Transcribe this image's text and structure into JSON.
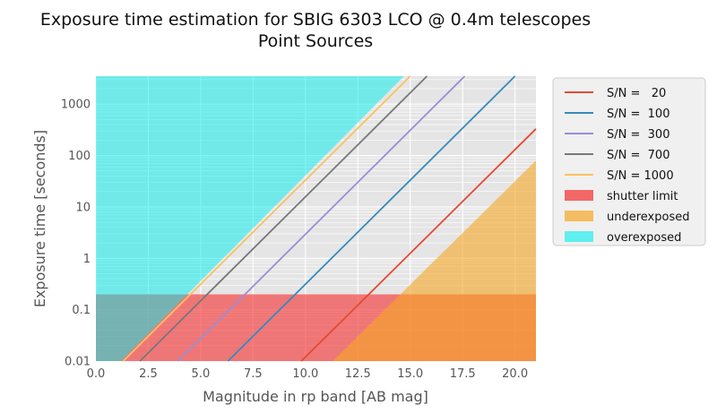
{
  "chart_data": {
    "type": "line",
    "title": "Exposure time estimation for SBIG 6303 LCO @ 0.4m telescopes",
    "subtitle": "Point Sources",
    "xlabel": "Magnitude in rp band [AB mag]",
    "ylabel": "Exposure time [seconds]",
    "xlim": [
      0,
      21
    ],
    "ylim": [
      0.01,
      3500
    ],
    "yscale": "log",
    "grid": true,
    "legend_position": "outside-right",
    "xticks": [
      "0.0",
      "2.5",
      "5.0",
      "7.5",
      "10.0",
      "12.5",
      "15.0",
      "17.5",
      "20.0"
    ],
    "xtick_values": [
      0,
      2.5,
      5,
      7.5,
      10,
      12.5,
      15,
      17.5,
      20
    ],
    "yticks": [
      "0.01",
      "0.1",
      "1",
      "10",
      "100",
      "1000"
    ],
    "ytick_values": [
      0.01,
      0.1,
      1,
      10,
      100,
      1000
    ],
    "series": [
      {
        "name": "S/N =   20",
        "color": "#e24a33",
        "x": [
          9.8,
          21.0
        ],
        "y": [
          0.01,
          330
        ]
      },
      {
        "name": "S/N =  100",
        "color": "#348abd",
        "x": [
          6.3,
          20.0
        ],
        "y": [
          0.01,
          3500
        ]
      },
      {
        "name": "S/N =  300",
        "color": "#988ed5",
        "x": [
          3.9,
          17.6
        ],
        "y": [
          0.01,
          3500
        ]
      },
      {
        "name": "S/N =  700",
        "color": "#777777",
        "x": [
          2.1,
          15.8
        ],
        "y": [
          0.01,
          3500
        ]
      },
      {
        "name": "S/N = 1000",
        "color": "#fbc15e",
        "x": [
          1.3,
          15.0
        ],
        "y": [
          0.01,
          3500
        ]
      }
    ],
    "regions": [
      {
        "name": "shutter limit",
        "color": "#f43a3a",
        "opacity": 0.65,
        "polygon": [
          [
            0,
            0.01
          ],
          [
            21,
            0.01
          ],
          [
            21,
            0.2
          ],
          [
            0,
            0.2
          ]
        ]
      },
      {
        "name": "underexposed",
        "color": "#f5a623",
        "opacity": 0.6,
        "polygon": [
          [
            11.3,
            0.01
          ],
          [
            21,
            0.01
          ],
          [
            21,
            80
          ]
        ]
      },
      {
        "name": "overexposed",
        "color": "#00eeee",
        "opacity": 0.5,
        "polygon": [
          [
            0,
            0.01
          ],
          [
            1.2,
            0.01
          ],
          [
            14.7,
            3500
          ],
          [
            0,
            3500
          ]
        ]
      }
    ]
  }
}
